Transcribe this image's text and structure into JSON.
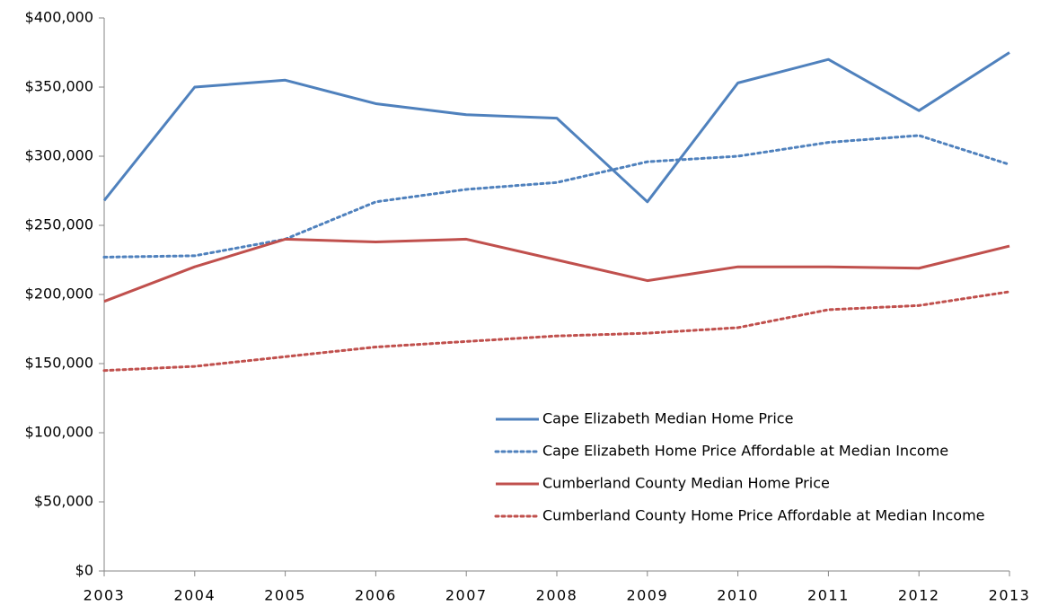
{
  "chart_data": {
    "type": "line",
    "categories": [
      "2003",
      "2004",
      "2005",
      "2006",
      "2007",
      "2008",
      "2009",
      "2010",
      "2011",
      "2012",
      "2013"
    ],
    "series": [
      {
        "name": "Cape Elizabeth Median Home Price",
        "color": "#4f81bd",
        "style": "solid",
        "values": [
          268000,
          350000,
          355000,
          338000,
          330000,
          327500,
          267000,
          353000,
          370000,
          333000,
          375000
        ]
      },
      {
        "name": "Cape Elizabeth Home Price Affordable at Median Income",
        "color": "#4f81bd",
        "style": "dotted",
        "values": [
          227000,
          228000,
          240000,
          267000,
          276000,
          281000,
          296000,
          300000,
          310000,
          315000,
          294000
        ]
      },
      {
        "name": "Cumberland County Median Home Price",
        "color": "#c0504d",
        "style": "solid",
        "values": [
          195000,
          220000,
          240000,
          238000,
          240000,
          225000,
          210000,
          220000,
          220000,
          219000,
          235000
        ]
      },
      {
        "name": "Cumberland County Home Price Affordable at Median Income",
        "color": "#c0504d",
        "style": "dotted",
        "values": [
          145000,
          148000,
          155000,
          162000,
          166000,
          170000,
          172000,
          176000,
          189000,
          192000,
          202000
        ]
      }
    ],
    "ylim": [
      0,
      400000
    ],
    "yticks": [
      {
        "value": 0,
        "label": "$0"
      },
      {
        "value": 50000,
        "label": "$50,000"
      },
      {
        "value": 100000,
        "label": "$100,000"
      },
      {
        "value": 150000,
        "label": "$150,000"
      },
      {
        "value": 200000,
        "label": "$200,000"
      },
      {
        "value": 250000,
        "label": "$250,000"
      },
      {
        "value": 300000,
        "label": "$300,000"
      },
      {
        "value": 350000,
        "label": "$350,000"
      },
      {
        "value": 400000,
        "label": "$400,000"
      }
    ],
    "grid": false,
    "legend_position": "lower right"
  }
}
